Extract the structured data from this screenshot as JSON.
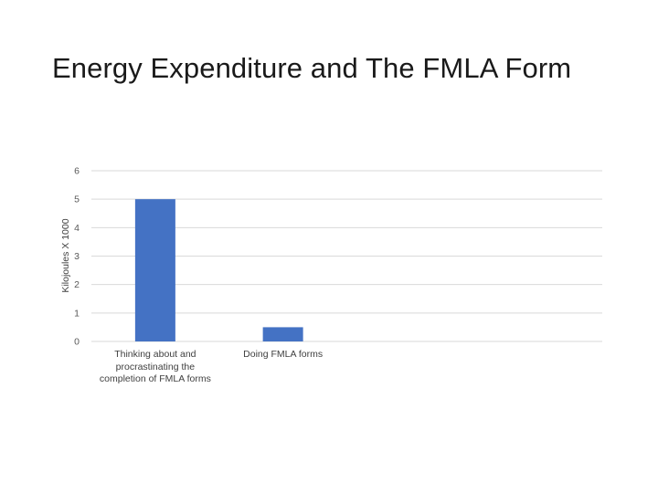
{
  "slide": {
    "title": "Energy Expenditure and The FMLA Form"
  },
  "chart_data": {
    "type": "bar",
    "title": "",
    "xlabel": "",
    "ylabel": "Kilojoules X 1000",
    "categories": [
      "Thinking about and procrastinating the completion of FMLA forms",
      "Doing FMLA forms",
      "",
      ""
    ],
    "category_lines": [
      [
        "Thinking about and",
        "procrastinating the",
        "completion of FMLA forms"
      ],
      [
        "Doing FMLA forms"
      ],
      [],
      []
    ],
    "series": [
      {
        "values": [
          5,
          0.5,
          null,
          null
        ]
      }
    ],
    "ylim": [
      0,
      6
    ],
    "yticks": [
      0,
      1,
      2,
      3,
      4,
      5,
      6
    ],
    "grid": true,
    "legend": "none",
    "bar_color": "#4472c4",
    "grid_color": "#d9d9d9",
    "tick_label_color": "#595959"
  }
}
